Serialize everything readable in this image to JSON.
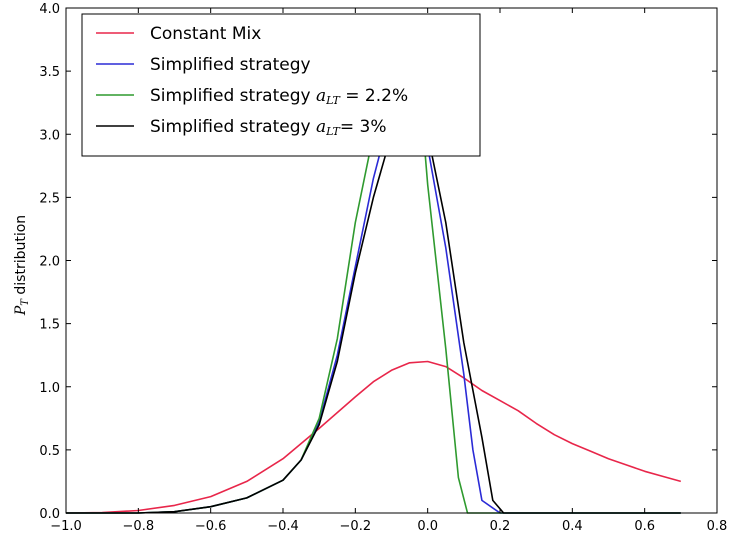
{
  "chart_data": {
    "type": "line",
    "title": "",
    "xlabel": "",
    "ylabel": "P_T distribution",
    "xlim": [
      -1.0,
      0.8
    ],
    "ylim": [
      0.0,
      4.0
    ],
    "xticks": [
      "−1.0",
      "−0.8",
      "−0.6",
      "−0.4",
      "−0.2",
      "0.0",
      "0.2",
      "0.4",
      "0.6",
      "0.8"
    ],
    "yticks": [
      "0.0",
      "0.5",
      "1.0",
      "1.5",
      "2.0",
      "2.5",
      "3.0",
      "3.5",
      "4.0"
    ],
    "grid": false,
    "legend_position": "top-left",
    "series": [
      {
        "name": "Constant Mix",
        "color": "#e8264a",
        "points": [
          [
            -1.0,
            0.0
          ],
          [
            -0.9,
            0.003
          ],
          [
            -0.8,
            0.02
          ],
          [
            -0.7,
            0.06
          ],
          [
            -0.6,
            0.13
          ],
          [
            -0.5,
            0.25
          ],
          [
            -0.4,
            0.43
          ],
          [
            -0.3,
            0.67
          ],
          [
            -0.2,
            0.92
          ],
          [
            -0.15,
            1.04
          ],
          [
            -0.1,
            1.13
          ],
          [
            -0.05,
            1.19
          ],
          [
            0.0,
            1.2
          ],
          [
            0.05,
            1.16
          ],
          [
            0.1,
            1.07
          ],
          [
            0.15,
            0.97
          ],
          [
            0.2,
            0.89
          ],
          [
            0.25,
            0.81
          ],
          [
            0.3,
            0.71
          ],
          [
            0.35,
            0.62
          ],
          [
            0.4,
            0.55
          ],
          [
            0.45,
            0.49
          ],
          [
            0.5,
            0.43
          ],
          [
            0.55,
            0.38
          ],
          [
            0.6,
            0.33
          ],
          [
            0.65,
            0.29
          ],
          [
            0.7,
            0.25
          ]
        ]
      },
      {
        "name": "Simplified strategy",
        "color": "#2b2bd6",
        "points": [
          [
            -1.0,
            0.0
          ],
          [
            -0.9,
            0.0
          ],
          [
            -0.8,
            0.0
          ],
          [
            -0.7,
            0.01
          ],
          [
            -0.6,
            0.05
          ],
          [
            -0.5,
            0.12
          ],
          [
            -0.4,
            0.26
          ],
          [
            -0.35,
            0.42
          ],
          [
            -0.3,
            0.72
          ],
          [
            -0.25,
            1.25
          ],
          [
            -0.2,
            1.95
          ],
          [
            -0.15,
            2.65
          ],
          [
            -0.1,
            3.2
          ],
          [
            -0.06,
            3.5
          ],
          [
            -0.03,
            3.2
          ],
          [
            0.0,
            2.9
          ],
          [
            0.05,
            2.1
          ],
          [
            0.1,
            1.1
          ],
          [
            0.125,
            0.5
          ],
          [
            0.15,
            0.1
          ],
          [
            0.2,
            0.0
          ],
          [
            0.7,
            0.0
          ]
        ]
      },
      {
        "name": "Simplified strategy a_LT = 2.2%",
        "color": "#2f9a2f",
        "points": [
          [
            -1.0,
            0.0
          ],
          [
            -0.9,
            0.0
          ],
          [
            -0.8,
            0.0
          ],
          [
            -0.7,
            0.01
          ],
          [
            -0.6,
            0.05
          ],
          [
            -0.5,
            0.12
          ],
          [
            -0.4,
            0.26
          ],
          [
            -0.35,
            0.42
          ],
          [
            -0.3,
            0.75
          ],
          [
            -0.25,
            1.38
          ],
          [
            -0.2,
            2.3
          ],
          [
            -0.15,
            3.0
          ],
          [
            -0.1,
            3.55
          ],
          [
            -0.06,
            3.95
          ],
          [
            -0.04,
            3.85
          ],
          [
            -0.02,
            3.3
          ],
          [
            0.0,
            2.6
          ],
          [
            0.05,
            1.3
          ],
          [
            0.085,
            0.28
          ],
          [
            0.11,
            0.0
          ],
          [
            0.7,
            0.0
          ]
        ]
      },
      {
        "name": "Simplified strategy a_LT= 3%",
        "color": "#000000",
        "points": [
          [
            -1.0,
            0.0
          ],
          [
            -0.9,
            0.0
          ],
          [
            -0.8,
            0.0
          ],
          [
            -0.7,
            0.01
          ],
          [
            -0.6,
            0.05
          ],
          [
            -0.5,
            0.12
          ],
          [
            -0.4,
            0.26
          ],
          [
            -0.35,
            0.42
          ],
          [
            -0.3,
            0.7
          ],
          [
            -0.25,
            1.2
          ],
          [
            -0.2,
            1.9
          ],
          [
            -0.15,
            2.5
          ],
          [
            -0.1,
            3.0
          ],
          [
            -0.06,
            3.3
          ],
          [
            -0.03,
            3.3
          ],
          [
            0.0,
            3.0
          ],
          [
            0.05,
            2.3
          ],
          [
            0.1,
            1.35
          ],
          [
            0.15,
            0.6
          ],
          [
            0.18,
            0.1
          ],
          [
            0.21,
            0.0
          ],
          [
            0.7,
            0.0
          ]
        ]
      }
    ],
    "legend": {
      "entries": [
        {
          "text": "Constant Mix",
          "math": "",
          "suffix": ""
        },
        {
          "text": "Simplified strategy",
          "math": "",
          "suffix": ""
        },
        {
          "text": "Simplified strategy ",
          "math": "aLT",
          "suffix": " = 2.2%"
        },
        {
          "text": "Simplified strategy ",
          "math": "aLT",
          "suffix": "= 3%"
        }
      ]
    }
  }
}
